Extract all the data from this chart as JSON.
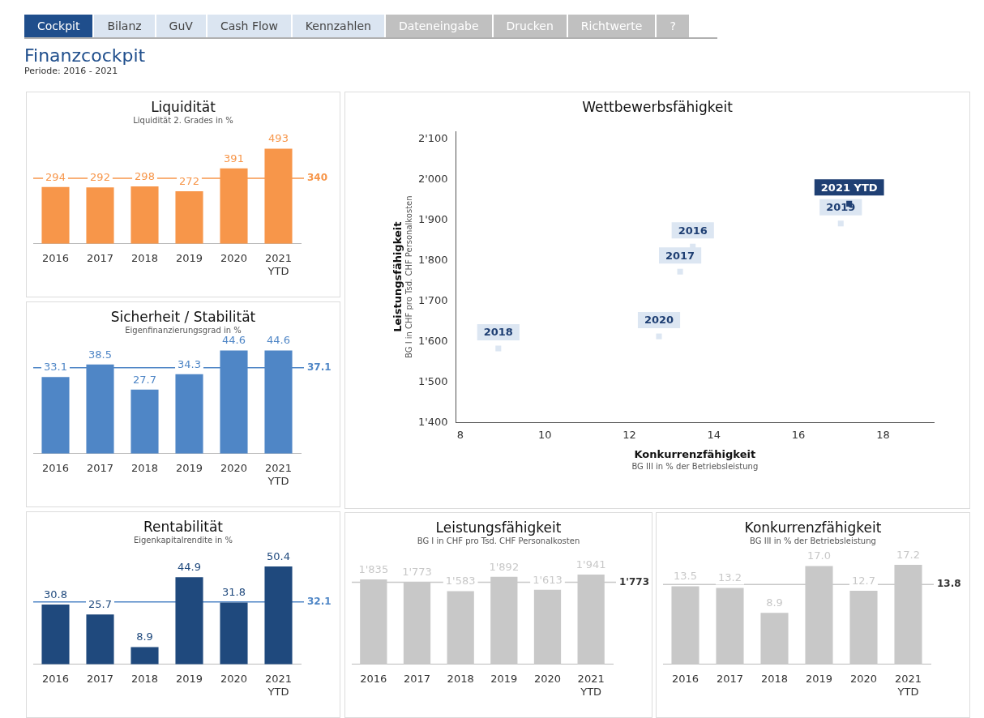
{
  "chart_data": [
    {
      "type": "other",
      "title": "Finanzcockpit",
      "subtitle": "Periode: 2016 - 2021",
      "annotations": [
        "Cockpit",
        "Bilanz",
        "GuV",
        "Cash Flow",
        "Kennzahlen",
        "Dateneingabe",
        "Drucken",
        "Richtwerte",
        "?"
      ]
    },
    {
      "type": "bar",
      "title": "Liquidität",
      "subtitle": "Liquidität 2. Grades in %",
      "categories": [
        "2016",
        "2017",
        "2018",
        "2019",
        "2020",
        "2021 YTD"
      ],
      "values": [
        294,
        292,
        298,
        272,
        391,
        493
      ],
      "color": "#f7964a",
      "data_labels": true,
      "tick_labels": "x",
      "grid": false,
      "legend": false,
      "ref_lines": [
        {
          "axis": "y",
          "value": 340,
          "label": "340",
          "color": "#f7964a"
        }
      ]
    },
    {
      "type": "scatter",
      "title": "Wettbewerbsfähigkeit",
      "xlabel": "Konkurrenzfähigkeit\nBG III in % der Betriebsleistung",
      "ylabel": "Leistungsfähigkeit\nBG I in CHF pro Tsd. CHF Personalkosten",
      "x": [
        13.5,
        13.2,
        8.9,
        17.0,
        12.7,
        17.2
      ],
      "values": [
        1835,
        1773,
        1583,
        1892,
        1613,
        1941
      ],
      "marker": "square",
      "annotations": [
        {
          "text": "2016",
          "x": 13.5,
          "y": 1835
        },
        {
          "text": "2017",
          "x": 13.2,
          "y": 1773
        },
        {
          "text": "2018",
          "x": 8.9,
          "y": 1583
        },
        {
          "text": "2019",
          "x": 17.0,
          "y": 1892
        },
        {
          "text": "2020",
          "x": 12.7,
          "y": 1613
        },
        {
          "text": "2021 YTD",
          "x": 17.2,
          "y": 1941
        }
      ],
      "colors": [
        "#dce6f2",
        "#dce6f2",
        "#dce6f2",
        "#dce6f2",
        "#dce6f2",
        "#1f3f73"
      ],
      "xlim": [
        7.9,
        19.2
      ],
      "xticks": [
        8,
        10,
        12,
        14,
        16,
        18
      ],
      "ylim": [
        1400,
        2120
      ],
      "yticks": [
        {
          "value": 1400,
          "label": "1'400"
        },
        {
          "value": 1500,
          "label": "1'500"
        },
        {
          "value": 1600,
          "label": "1'600"
        },
        {
          "value": 1700,
          "label": "1'700"
        },
        {
          "value": 1800,
          "label": "1'800"
        },
        {
          "value": 1900,
          "label": "1'900"
        },
        {
          "value": 2000,
          "label": "2'000"
        },
        {
          "value": 2100,
          "label": "2'100"
        }
      ],
      "grid": false,
      "legend": false
    },
    {
      "type": "bar",
      "title": "Sicherheit / Stabilität",
      "subtitle": "Eigenfinanzierungsgrad in %",
      "categories": [
        "2016",
        "2017",
        "2018",
        "2019",
        "2020",
        "2021 YTD"
      ],
      "values": [
        33.1,
        38.5,
        27.7,
        34.3,
        44.6,
        44.6
      ],
      "color": "#4f86c6",
      "data_labels": true,
      "tick_labels": "x",
      "grid": false,
      "legend": false,
      "ref_lines": [
        {
          "axis": "y",
          "value": 37.1,
          "label": "37.1",
          "color": "#4f86c6"
        }
      ]
    },
    {
      "type": "bar",
      "title": "Rentabilität",
      "subtitle": "Eigenkapitalrendite in %",
      "categories": [
        "2016",
        "2017",
        "2018",
        "2019",
        "2020",
        "2021 YTD"
      ],
      "values": [
        30.8,
        25.7,
        8.9,
        44.9,
        31.8,
        50.4
      ],
      "color": "#1f497d",
      "data_labels": true,
      "tick_labels": "x",
      "grid": false,
      "legend": false,
      "ref_lines": [
        {
          "axis": "y",
          "value": 32.1,
          "label": "32.1",
          "color": "#4f86c6"
        }
      ]
    },
    {
      "type": "bar",
      "title": "Leistungsfähigkeit",
      "subtitle": "BG I in CHF pro Tsd. CHF Personalkosten",
      "categories": [
        "2016",
        "2017",
        "2018",
        "2019",
        "2020",
        "2021 YTD"
      ],
      "values": [
        1835,
        1773,
        1583,
        1892,
        1613,
        1941
      ],
      "value_labels": [
        "1'835",
        "1'773",
        "1'583",
        "1'892",
        "1'613",
        "1'941"
      ],
      "color": "#c8c8c8",
      "tick_labels": "x",
      "grid": false,
      "legend": false,
      "ref_lines": [
        {
          "axis": "y",
          "value": 1773,
          "label": "1'773",
          "color": "#c8c8c8"
        }
      ]
    },
    {
      "type": "bar",
      "title": "Konkurrenzfähigkeit",
      "subtitle": "BG III in % der Betriebsleistung",
      "categories": [
        "2016",
        "2017",
        "2018",
        "2019",
        "2020",
        "2021 YTD"
      ],
      "values": [
        13.5,
        13.2,
        8.9,
        17.0,
        12.7,
        17.2
      ],
      "value_labels": [
        "13.5",
        "13.2",
        "8.9",
        "17.0",
        "12.7",
        "17.2"
      ],
      "color": "#c8c8c8",
      "tick_labels": "x",
      "grid": false,
      "legend": false,
      "ref_lines": [
        {
          "axis": "y",
          "value": 13.8,
          "label": "13.8",
          "color": "#c8c8c8"
        }
      ]
    }
  ]
}
